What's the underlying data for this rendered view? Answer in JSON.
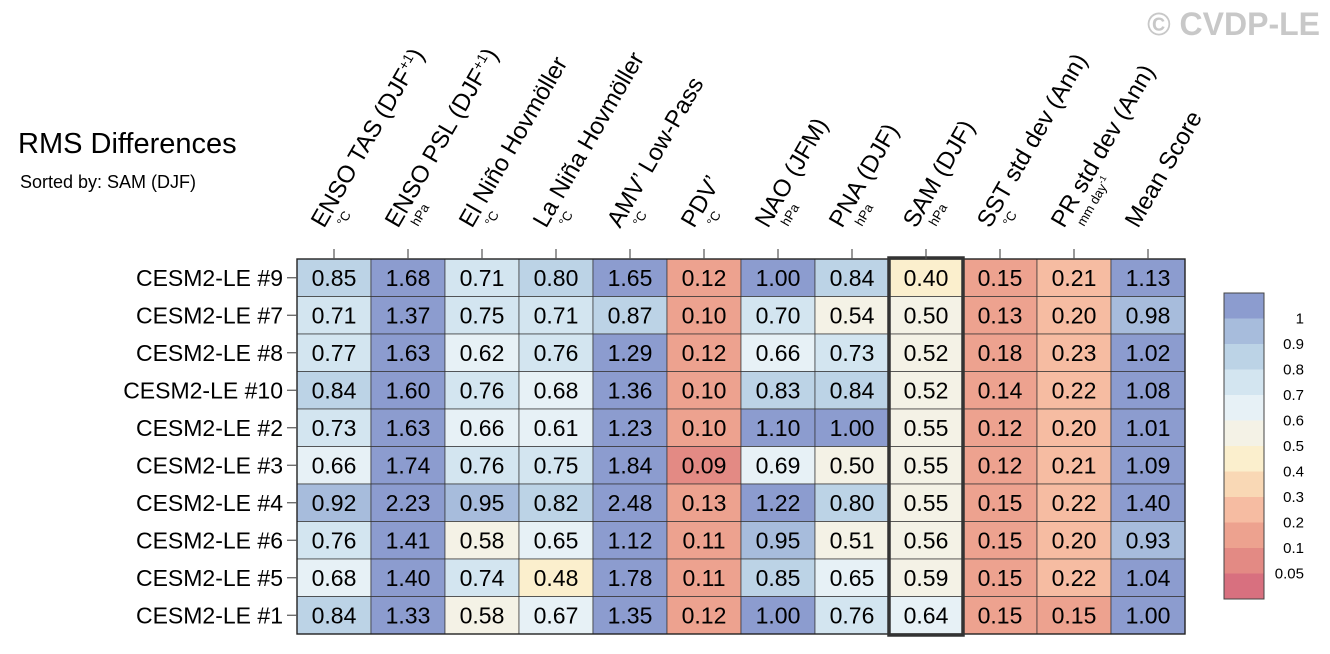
{
  "header": {
    "title": "RMS Differences",
    "subtitle": "Sorted by: SAM (DJF)",
    "watermark": "© CVDP-LE"
  },
  "chart_data": {
    "type": "heatmap",
    "title": "RMS Differences",
    "sorted_by": "SAM (DJF)",
    "highlighted_column": "SAM (DJF)",
    "columns": [
      {
        "label": "ENSO TAS (DJF",
        "sup": "+1",
        "tail": ")",
        "unit": "°C"
      },
      {
        "label": "ENSO PSL (DJF",
        "sup": "+1",
        "tail": ")",
        "unit": "hPa"
      },
      {
        "label": "El Niño Hovmöller",
        "sup": "",
        "tail": "",
        "unit": "°C"
      },
      {
        "label": "La Niña Hovmöller",
        "sup": "",
        "tail": "",
        "unit": "°C"
      },
      {
        "label": "AMV’ Low-Pass",
        "sup": "",
        "tail": "",
        "unit": "°C"
      },
      {
        "label": "PDV’",
        "sup": "",
        "tail": "",
        "unit": "°C"
      },
      {
        "label": "NAO (JFM)",
        "sup": "",
        "tail": "",
        "unit": "hPa"
      },
      {
        "label": "PNA (DJF)",
        "sup": "",
        "tail": "",
        "unit": "hPa"
      },
      {
        "label": "SAM (DJF)",
        "sup": "",
        "tail": "",
        "unit": "hPa"
      },
      {
        "label": "SST std dev (Ann)",
        "sup": "",
        "tail": "",
        "unit": "°C"
      },
      {
        "label": "PR std dev (Ann)",
        "sup": "",
        "tail": "",
        "unit": "mm day-1"
      },
      {
        "label": "Mean Score",
        "sup": "",
        "tail": "",
        "unit": ""
      }
    ],
    "rows": [
      "CESM2-LE #9",
      "CESM2-LE #7",
      "CESM2-LE #8",
      "CESM2-LE #10",
      "CESM2-LE #2",
      "CESM2-LE #3",
      "CESM2-LE #4",
      "CESM2-LE #6",
      "CESM2-LE #5",
      "CESM2-LE #1"
    ],
    "values": [
      [
        "0.85",
        "1.68",
        "0.71",
        "0.80",
        "1.65",
        "0.12",
        "1.00",
        "0.84",
        "0.40",
        "0.15",
        "0.21",
        "1.13"
      ],
      [
        "0.71",
        "1.37",
        "0.75",
        "0.71",
        "0.87",
        "0.10",
        "0.70",
        "0.54",
        "0.50",
        "0.13",
        "0.20",
        "0.98"
      ],
      [
        "0.77",
        "1.63",
        "0.62",
        "0.76",
        "1.29",
        "0.12",
        "0.66",
        "0.73",
        "0.52",
        "0.18",
        "0.23",
        "1.02"
      ],
      [
        "0.84",
        "1.60",
        "0.76",
        "0.68",
        "1.36",
        "0.10",
        "0.83",
        "0.84",
        "0.52",
        "0.14",
        "0.22",
        "1.08"
      ],
      [
        "0.73",
        "1.63",
        "0.66",
        "0.61",
        "1.23",
        "0.10",
        "1.10",
        "1.00",
        "0.55",
        "0.12",
        "0.20",
        "1.01"
      ],
      [
        "0.66",
        "1.74",
        "0.76",
        "0.75",
        "1.84",
        "0.09",
        "0.69",
        "0.50",
        "0.55",
        "0.12",
        "0.21",
        "1.09"
      ],
      [
        "0.92",
        "2.23",
        "0.95",
        "0.82",
        "2.48",
        "0.13",
        "1.22",
        "0.80",
        "0.55",
        "0.15",
        "0.22",
        "1.40"
      ],
      [
        "0.76",
        "1.41",
        "0.58",
        "0.65",
        "1.12",
        "0.11",
        "0.95",
        "0.51",
        "0.56",
        "0.15",
        "0.20",
        "0.93"
      ],
      [
        "0.68",
        "1.40",
        "0.74",
        "0.48",
        "1.78",
        "0.11",
        "0.85",
        "0.65",
        "0.59",
        "0.15",
        "0.22",
        "1.04"
      ],
      [
        "0.84",
        "1.33",
        "0.58",
        "0.67",
        "1.35",
        "0.12",
        "1.00",
        "0.76",
        "0.64",
        "0.15",
        "0.15",
        "1.00"
      ]
    ],
    "colorbar": {
      "tick_labels": [
        "1",
        "0.9",
        "0.8",
        "0.7",
        "0.6",
        "0.5",
        "0.4",
        "0.3",
        "0.2",
        "0.1",
        "0.05"
      ],
      "colors_top_to_bottom": [
        "#8c9ccf",
        "#a7bcdc",
        "#bcd3e6",
        "#d3e5f0",
        "#e7f1f6",
        "#f4f2e6",
        "#fbefcd",
        "#f9d8b5",
        "#f6bca2",
        "#eda28f",
        "#e38a84",
        "#d8707f"
      ]
    }
  }
}
